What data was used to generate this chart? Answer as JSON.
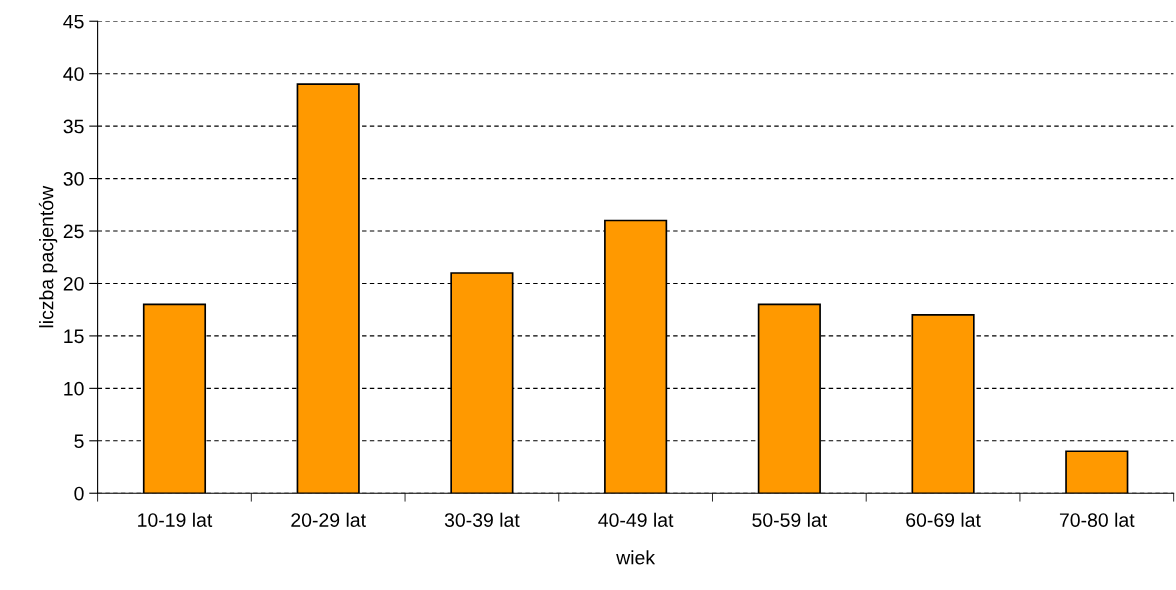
{
  "chart_data": {
    "type": "bar",
    "xlabel": "wiek",
    "ylabel": "liczba pacjentów",
    "categories": [
      "10-19 lat",
      "20-29 lat",
      "30-39 lat",
      "40-49 lat",
      "50-59 lat",
      "60-69 lat",
      "70-80 lat"
    ],
    "values": [
      18,
      39,
      21,
      26,
      18,
      17,
      4
    ],
    "color": "#ff9900",
    "ylim": [
      0,
      45
    ],
    "yticks": [
      0,
      5,
      10,
      15,
      20,
      25,
      30,
      35,
      40,
      45
    ],
    "grid": "y",
    "legend": false
  }
}
